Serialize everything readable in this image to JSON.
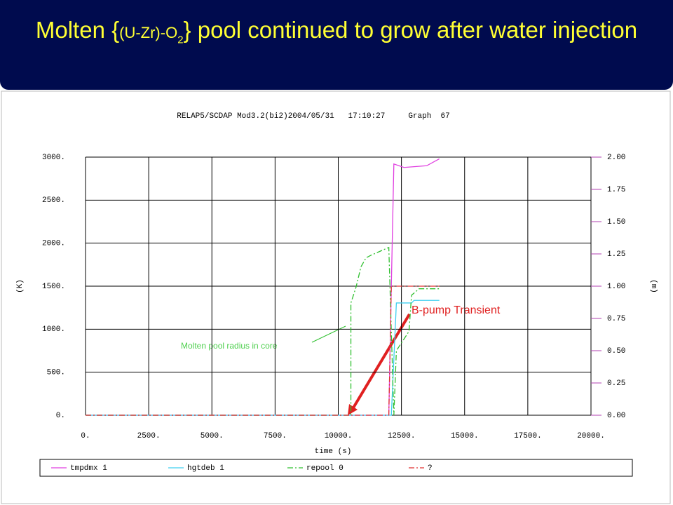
{
  "slide": {
    "title": {
      "before": "Molten {",
      "formula": "(U-Zr)-O",
      "subscript": "2",
      "after": "} pool continued to grow after water injection"
    }
  },
  "chart_data": {
    "type": "line",
    "title": "RELAP5/SCDAP Mod3.2(bi2)2004/05/31   17:10:27     Graph  67",
    "x_label": "time (s)",
    "y_label": "(K)",
    "y2_label": "(m)",
    "xlim": [
      0,
      20000
    ],
    "xticks": [
      {
        "value": 0,
        "label": "0."
      },
      {
        "value": 2500,
        "label": "2500."
      },
      {
        "value": 5000,
        "label": "5000."
      },
      {
        "value": 7500,
        "label": "7500."
      },
      {
        "value": 10000,
        "label": "10000."
      },
      {
        "value": 12500,
        "label": "12500."
      },
      {
        "value": 15000,
        "label": "15000."
      },
      {
        "value": 17500,
        "label": "17500."
      },
      {
        "value": 20000,
        "label": "20000."
      }
    ],
    "ylim": [
      0,
      3000
    ],
    "yticks": [
      {
        "value": 0,
        "label": "0."
      },
      {
        "value": 500,
        "label": "500."
      },
      {
        "value": 1000,
        "label": "1000."
      },
      {
        "value": 1500,
        "label": "1500."
      },
      {
        "value": 2000,
        "label": "2000."
      },
      {
        "value": 2500,
        "label": "2500."
      },
      {
        "value": 3000,
        "label": "3000."
      }
    ],
    "y2lim": [
      0,
      2
    ],
    "y2ticks": [
      {
        "value": 0,
        "label": "0.00"
      },
      {
        "value": 0.25,
        "label": "0.25"
      },
      {
        "value": 0.5,
        "label": "0.50"
      },
      {
        "value": 0.75,
        "label": "0.75"
      },
      {
        "value": 1,
        "label": "1.00"
      },
      {
        "value": 1.25,
        "label": "1.25"
      },
      {
        "value": 1.5,
        "label": "1.50"
      },
      {
        "value": 1.75,
        "label": "1.75"
      },
      {
        "value": 2,
        "label": "2.00"
      }
    ],
    "grid": true,
    "series": [
      {
        "name": "tmpdmx 1",
        "color": "#e040e0",
        "dash": "solid",
        "x": [
          0,
          12000,
          12100,
          12200,
          12600,
          13500,
          14000
        ],
        "values": [
          0,
          0,
          1500,
          2920,
          2880,
          2900,
          2980
        ]
      },
      {
        "name": "hgtdeb 1",
        "color": "#40d0f0",
        "dash": "solid",
        "axis": "y2",
        "x": [
          0,
          12100,
          12300,
          12900,
          13000,
          14000
        ],
        "values": [
          0,
          0,
          0.87,
          0.87,
          0.89,
          0.89
        ]
      },
      {
        "name": "repool 0",
        "color": "#30c030",
        "dash": "dash-dot",
        "axis": "y2",
        "x": [
          0,
          10500,
          10500,
          10700,
          10900,
          11100,
          11300,
          12000,
          12200,
          12300,
          12800,
          12900,
          13200,
          14000
        ],
        "values": [
          0,
          0,
          0.87,
          0.99,
          1.15,
          1.22,
          1.24,
          1.3,
          0,
          0.5,
          0.65,
          0.93,
          0.98,
          0.98
        ]
      },
      {
        "name": "?",
        "color": "#e03030",
        "dash": "dash-dot",
        "axis": "y2",
        "x": [
          0,
          12000,
          12100,
          14000
        ],
        "values": [
          0,
          0,
          1,
          1
        ]
      }
    ],
    "annotations": [
      "Molten pool radius in core",
      "B-pump Transient"
    ]
  }
}
